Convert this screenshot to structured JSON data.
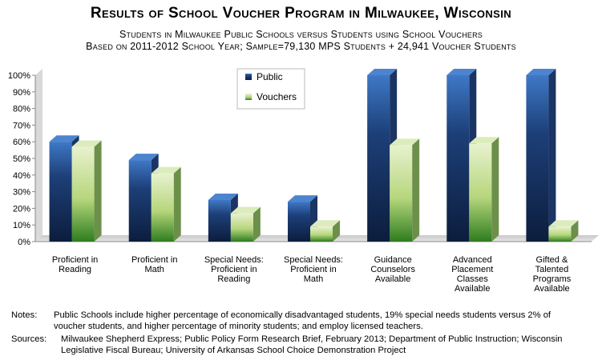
{
  "title": "Results of School Voucher Program in Milwaukee, Wisconsin",
  "subtitle_line1": "Students in Milwaukee Public Schools versus Students using School Vouchers",
  "subtitle_line2": "Based on 2011-2012 School Year; Sample=79,130 MPS Students + 24,941 Voucher Students",
  "notes_label": "Notes:",
  "notes_text": "Public Schools include higher percentage of economically disadvantaged students, 19% special needs students versus 2% of voucher students, and higher percentage of minority students; and employ licensed teachers.",
  "sources_label": "Sources:",
  "sources_text": "Milwaukee Shepherd Express; Public Policy Form Research Brief, February 2013; Department of Public Instruction; Wisconsin Legislative Fiscal Bureau; University of Arkansas School Choice Demonstration Project",
  "colors": {
    "public": "#2a5ea8",
    "vouchers": "#b9d98a"
  },
  "chart_data": {
    "type": "bar",
    "title": "Results of School Voucher Program in Milwaukee, Wisconsin",
    "categories": [
      [
        "Proficient in",
        "Reading"
      ],
      [
        "Proficient in",
        "Math"
      ],
      [
        "Special Needs:",
        "Proficient in",
        "Reading"
      ],
      [
        "Special Needs:",
        "Proficient in",
        "Math"
      ],
      [
        "Guidance",
        "Counselors",
        "Available"
      ],
      [
        "Advanced",
        "Placement",
        "Classes",
        "Available"
      ],
      [
        "Gifted &",
        "Talented",
        "Programs",
        "Available"
      ]
    ],
    "series": [
      {
        "name": "Public",
        "values": [
          60,
          49,
          25,
          24,
          100,
          100,
          100
        ]
      },
      {
        "name": "Vouchers",
        "values": [
          57,
          41,
          17,
          9,
          58,
          59,
          9
        ]
      }
    ],
    "ylim": [
      0,
      100
    ],
    "yticks": [
      "0%",
      "10%",
      "20%",
      "30%",
      "40%",
      "50%",
      "60%",
      "70%",
      "80%",
      "90%",
      "100%"
    ],
    "legend": "top-left inside",
    "grid": false
  }
}
